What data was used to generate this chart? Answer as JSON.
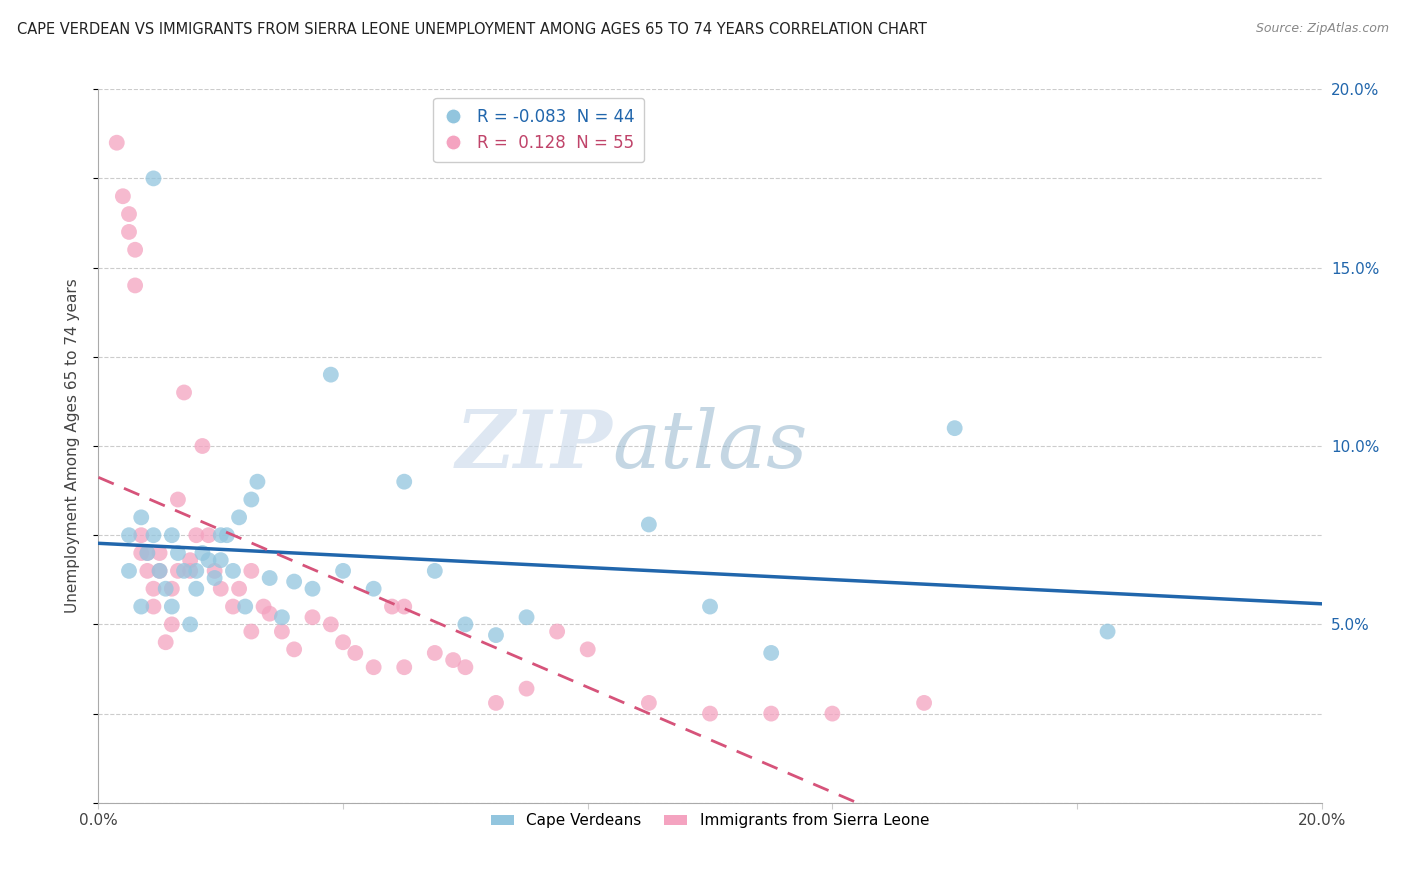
{
  "title": "CAPE VERDEAN VS IMMIGRANTS FROM SIERRA LEONE UNEMPLOYMENT AMONG AGES 65 TO 74 YEARS CORRELATION CHART",
  "source": "Source: ZipAtlas.com",
  "ylabel": "Unemployment Among Ages 65 to 74 years",
  "xlim": [
    0.0,
    0.2
  ],
  "ylim": [
    0.0,
    0.2
  ],
  "watermark": "ZIPatlas",
  "blue_color": "#92c5de",
  "pink_color": "#f4a3c0",
  "blue_line_color": "#2166ac",
  "pink_line_color": "#d6537a",
  "grid_color": "#cccccc",
  "background_color": "#ffffff",
  "cape_verdean_x": [
    0.005,
    0.009,
    0.005,
    0.007,
    0.007,
    0.008,
    0.009,
    0.01,
    0.011,
    0.012,
    0.012,
    0.013,
    0.014,
    0.015,
    0.016,
    0.016,
    0.017,
    0.018,
    0.019,
    0.02,
    0.02,
    0.021,
    0.022,
    0.023,
    0.024,
    0.025,
    0.026,
    0.028,
    0.03,
    0.032,
    0.035,
    0.038,
    0.04,
    0.045,
    0.05,
    0.055,
    0.06,
    0.065,
    0.07,
    0.09,
    0.1,
    0.11,
    0.14,
    0.165
  ],
  "cape_verdean_y": [
    0.075,
    0.175,
    0.065,
    0.08,
    0.055,
    0.07,
    0.075,
    0.065,
    0.06,
    0.075,
    0.055,
    0.07,
    0.065,
    0.05,
    0.06,
    0.065,
    0.07,
    0.068,
    0.063,
    0.075,
    0.068,
    0.075,
    0.065,
    0.08,
    0.055,
    0.085,
    0.09,
    0.063,
    0.052,
    0.062,
    0.06,
    0.12,
    0.065,
    0.06,
    0.09,
    0.065,
    0.05,
    0.047,
    0.052,
    0.078,
    0.055,
    0.042,
    0.105,
    0.048
  ],
  "sierra_leone_x": [
    0.003,
    0.004,
    0.005,
    0.005,
    0.006,
    0.006,
    0.007,
    0.007,
    0.008,
    0.008,
    0.009,
    0.009,
    0.01,
    0.01,
    0.011,
    0.012,
    0.012,
    0.013,
    0.013,
    0.014,
    0.015,
    0.015,
    0.016,
    0.017,
    0.018,
    0.019,
    0.02,
    0.022,
    0.023,
    0.025,
    0.027,
    0.028,
    0.03,
    0.032,
    0.035,
    0.038,
    0.04,
    0.042,
    0.045,
    0.048,
    0.05,
    0.055,
    0.058,
    0.06,
    0.065,
    0.07,
    0.075,
    0.08,
    0.09,
    0.1,
    0.11,
    0.12,
    0.135,
    0.05,
    0.025
  ],
  "sierra_leone_y": [
    0.185,
    0.17,
    0.165,
    0.16,
    0.155,
    0.145,
    0.075,
    0.07,
    0.065,
    0.07,
    0.055,
    0.06,
    0.065,
    0.07,
    0.045,
    0.05,
    0.06,
    0.085,
    0.065,
    0.115,
    0.068,
    0.065,
    0.075,
    0.1,
    0.075,
    0.065,
    0.06,
    0.055,
    0.06,
    0.048,
    0.055,
    0.053,
    0.048,
    0.043,
    0.052,
    0.05,
    0.045,
    0.042,
    0.038,
    0.055,
    0.038,
    0.042,
    0.04,
    0.038,
    0.028,
    0.032,
    0.048,
    0.043,
    0.028,
    0.025,
    0.025,
    0.025,
    0.028,
    0.055,
    0.065
  ]
}
